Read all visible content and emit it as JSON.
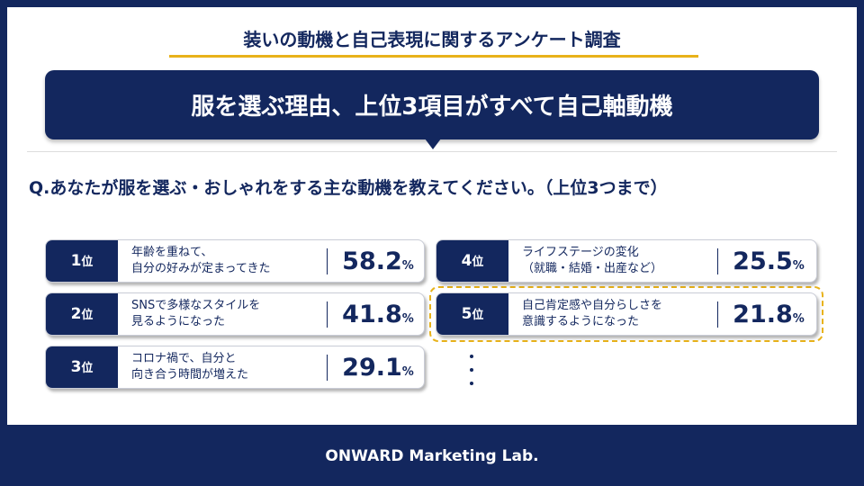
{
  "header": {
    "title": "装いの動機と自己表現に関するアンケート調査",
    "headline": "服を選ぶ理由、上位3項目がすべて自己軸動機"
  },
  "question": "Q.あなたが服を選ぶ・おしゃれをする主な動機を教えてください。（上位3つまで）",
  "ranking": [
    {
      "rank": "1",
      "rank_unit": "位",
      "lines": [
        "年齢を重ねて、",
        "自分の好みが定まってきた"
      ],
      "value": "58.2",
      "unit": "%"
    },
    {
      "rank": "2",
      "rank_unit": "位",
      "lines": [
        "SNSで多様なスタイルを",
        "見るようになった"
      ],
      "value": "41.8",
      "unit": "%"
    },
    {
      "rank": "3",
      "rank_unit": "位",
      "lines": [
        "コロナ禍で、自分と",
        "向き合う時間が増えた"
      ],
      "value": "29.1",
      "unit": "%"
    },
    {
      "rank": "4",
      "rank_unit": "位",
      "lines": [
        "ライフステージの変化",
        "（就職・結婚・出産など）"
      ],
      "value": "25.5",
      "unit": "%"
    },
    {
      "rank": "5",
      "rank_unit": "位",
      "lines": [
        "自己肯定感や自分らしさを",
        "意識するようになった"
      ],
      "value": "21.8",
      "unit": "%"
    }
  ],
  "footer": "ONWARD Marketing Lab."
}
